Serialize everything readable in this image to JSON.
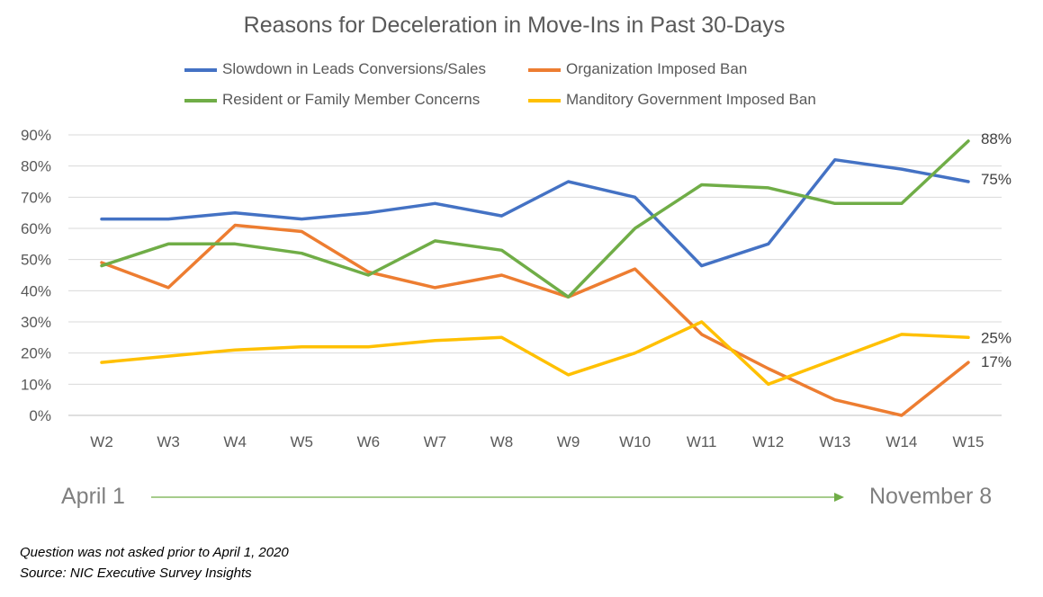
{
  "chart_data": {
    "type": "line",
    "title": "Reasons for Deceleration in Move-Ins in Past 30-Days",
    "categories": [
      "W2",
      "W3",
      "W4",
      "W5",
      "W6",
      "W7",
      "W8",
      "W9",
      "W10",
      "W11",
      "W12",
      "W13",
      "W14",
      "W15"
    ],
    "y_tick_labels": [
      "0%",
      "10%",
      "20%",
      "30%",
      "40%",
      "50%",
      "60%",
      "70%",
      "80%",
      "90%"
    ],
    "ylim": [
      0,
      90
    ],
    "grid": true,
    "legend_position": "top",
    "series": [
      {
        "name": "Slowdown in Leads Conversions/Sales",
        "color": "#4472C4",
        "values": [
          63,
          63,
          65,
          63,
          65,
          68,
          64,
          75,
          70,
          48,
          55,
          82,
          79,
          75
        ],
        "end_label": "75%"
      },
      {
        "name": "Organization Imposed Ban",
        "color": "#ED7D31",
        "values": [
          49,
          41,
          61,
          59,
          46,
          41,
          45,
          38,
          47,
          26,
          15,
          5,
          0,
          17
        ],
        "end_label": "17%"
      },
      {
        "name": "Resident or Family Member Concerns",
        "color": "#70AD47",
        "values": [
          48,
          55,
          55,
          52,
          45,
          56,
          53,
          38,
          60,
          74,
          73,
          68,
          68,
          88
        ],
        "end_label": "88%"
      },
      {
        "name": "Manditory Government Imposed Ban",
        "color": "#FFC000",
        "values": [
          17,
          19,
          21,
          22,
          22,
          24,
          25,
          13,
          20,
          30,
          10,
          18,
          26,
          25
        ],
        "end_label": "25%"
      }
    ]
  },
  "range": {
    "start": "April 1",
    "end": "November 8",
    "arrow_color": "#70AD47"
  },
  "notes": {
    "line1": "Question was not asked prior to April 1, 2020",
    "line2": "Source: NIC Executive Survey Insights"
  }
}
